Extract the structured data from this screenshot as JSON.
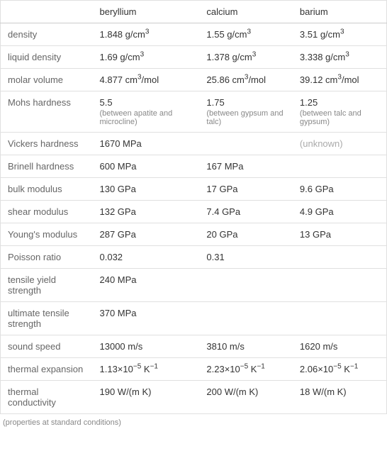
{
  "columns": [
    "",
    "beryllium",
    "calcium",
    "barium"
  ],
  "rows": [
    {
      "label": "density",
      "be": "1.848 g/cm<sup>3</sup>",
      "ca": "1.55 g/cm<sup>3</sup>",
      "ba": "3.51 g/cm<sup>3</sup>"
    },
    {
      "label": "liquid density",
      "be": "1.69 g/cm<sup>3</sup>",
      "ca": "1.378 g/cm<sup>3</sup>",
      "ba": "3.338 g/cm<sup>3</sup>"
    },
    {
      "label": "molar volume",
      "be": "4.877 cm<sup>3</sup>/mol",
      "ca": "25.86 cm<sup>3</sup>/mol",
      "ba": "39.12 cm<sup>3</sup>/mol"
    },
    {
      "label": "Mohs hardness",
      "be": "5.5",
      "be_sub": "(between apatite and microcline)",
      "ca": "1.75",
      "ca_sub": "(between gypsum and talc)",
      "ba": "1.25",
      "ba_sub": "(between talc and gypsum)"
    },
    {
      "label": "Vickers hardness",
      "be": "1670 MPa",
      "ca": "",
      "ba": "(unknown)",
      "ba_unknown": true
    },
    {
      "label": "Brinell hardness",
      "be": "600 MPa",
      "ca": "167 MPa",
      "ba": ""
    },
    {
      "label": "bulk modulus",
      "be": "130 GPa",
      "ca": "17 GPa",
      "ba": "9.6 GPa"
    },
    {
      "label": "shear modulus",
      "be": "132 GPa",
      "ca": "7.4 GPa",
      "ba": "4.9 GPa"
    },
    {
      "label": "Young's modulus",
      "be": "287 GPa",
      "ca": "20 GPa",
      "ba": "13 GPa"
    },
    {
      "label": "Poisson ratio",
      "be": "0.032",
      "ca": "0.31",
      "ba": ""
    },
    {
      "label": "tensile yield strength",
      "be": "240 MPa",
      "ca": "",
      "ba": ""
    },
    {
      "label": "ultimate tensile strength",
      "be": "370 MPa",
      "ca": "",
      "ba": ""
    },
    {
      "label": "sound speed",
      "be": "13000 m/s",
      "ca": "3810 m/s",
      "ba": "1620 m/s"
    },
    {
      "label": "thermal expansion",
      "be": "1.13×10<sup>−5</sup> K<sup>−1</sup>",
      "ca": "2.23×10<sup>−5</sup> K<sup>−1</sup>",
      "ba": "2.06×10<sup>−5</sup> K<sup>−1</sup>"
    },
    {
      "label": "thermal conductivity",
      "be": "190 W/(m K)",
      "ca": "200 W/(m K)",
      "ba": "18 W/(m K)"
    }
  ],
  "footnote": "(properties at standard conditions)"
}
